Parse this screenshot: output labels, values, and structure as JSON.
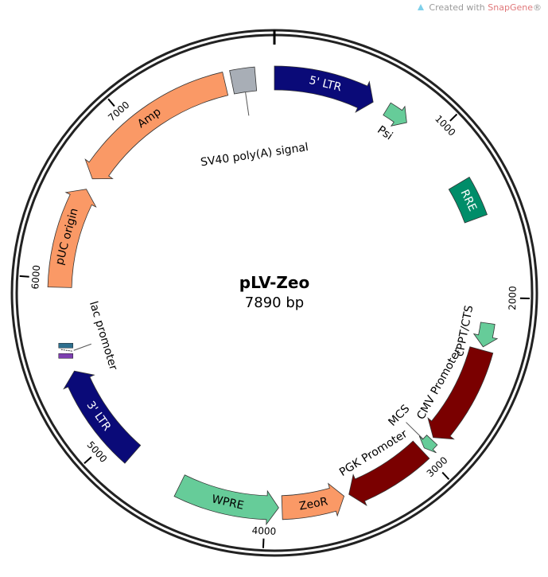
{
  "watermark": {
    "prefix": "Created with ",
    "brand": "SnapGene",
    "suffix": "®"
  },
  "plasmid": {
    "name": "pLV-Zeo",
    "size_text": "7890 bp",
    "length_bp": 7890
  },
  "ticks": [
    {
      "bp": 1000,
      "label": "1000"
    },
    {
      "bp": 2000,
      "label": "2000"
    },
    {
      "bp": 3000,
      "label": "3000"
    },
    {
      "bp": 4000,
      "label": "4000"
    },
    {
      "bp": 5000,
      "label": "5000"
    },
    {
      "bp": 6000,
      "label": "6000"
    },
    {
      "bp": 7000,
      "label": "7000"
    }
  ],
  "features": [
    {
      "id": "5-ltr",
      "name": "5' LTR",
      "start": 0,
      "end": 600,
      "type": "arrow",
      "dir": 1,
      "color": "#0a0a78",
      "track": 0,
      "labelPos": "inside",
      "labelColor": "#ffffff"
    },
    {
      "id": "psi",
      "name": "Psi",
      "start": 690,
      "end": 830,
      "type": "arrow",
      "dir": 1,
      "color": "#66cc99",
      "track": -1,
      "labelPos": "inner",
      "labelColor": "#000000"
    },
    {
      "id": "rre",
      "name": "RRE",
      "start": 1300,
      "end": 1530,
      "type": "box",
      "dir": 0,
      "color": "#008d69",
      "track": -1,
      "labelPos": "inside",
      "labelColor": "#ffffff"
    },
    {
      "id": "cppt-cts",
      "name": "cPPT/CTS",
      "start": 2150,
      "end": 2290,
      "type": "arrow",
      "dir": 1,
      "color": "#66cc99",
      "track": -1,
      "labelPos": "inner",
      "labelColor": "#000000"
    },
    {
      "id": "cmv-promoter",
      "name": "CMV Promoter",
      "start": 2310,
      "end": 2900,
      "type": "arrow",
      "dir": 1,
      "color": "#7a0000",
      "track": -1,
      "labelPos": "inner",
      "labelColor": "#000000"
    },
    {
      "id": "mcs",
      "name": "MCS",
      "start": 2915,
      "end": 2980,
      "type": "arrow",
      "dir": 1,
      "color": "#66cc99",
      "track": -1,
      "labelPos": "leader",
      "labelColor": "#000000"
    },
    {
      "id": "pgk-promoter",
      "name": "PGK Promoter",
      "start": 3000,
      "end": 3500,
      "type": "arrow",
      "dir": 1,
      "color": "#7a0000",
      "track": -1,
      "labelPos": "inner",
      "labelColor": "#000000"
    },
    {
      "id": "zeor",
      "name": "ZeoR",
      "start": 3530,
      "end": 3900,
      "type": "arrow",
      "dir": -1,
      "color": "#fa9966",
      "track": -1,
      "labelPos": "inside",
      "labelColor": "#000000"
    },
    {
      "id": "wpre",
      "name": "WPRE",
      "start": 3920,
      "end": 4520,
      "type": "arrow",
      "dir": -1,
      "color": "#66cc99",
      "track": -1,
      "labelPos": "inside",
      "labelColor": "#000000"
    },
    {
      "id": "3-ltr",
      "name": "3' LTR",
      "start": 4850,
      "end": 5450,
      "type": "arrow",
      "dir": 1,
      "color": "#0a0a78",
      "track": -1,
      "labelPos": "inside",
      "labelColor": "#ffffff"
    },
    {
      "id": "lac-promoter",
      "name": "lac promoter",
      "start": 5580,
      "end": 5660,
      "type": "small",
      "dir": 0,
      "color": "#2e6f8e",
      "track": 0,
      "labelPos": "leader",
      "labelColor": "#000000"
    },
    {
      "id": "puc-origin",
      "name": "pUC origin",
      "start": 5950,
      "end": 6550,
      "type": "arrow",
      "dir": 1,
      "color": "#fa9966",
      "track": -1,
      "labelPos": "inside",
      "labelColor": "#000000"
    },
    {
      "id": "amp",
      "name": "Amp",
      "start": 6620,
      "end": 7600,
      "type": "arrow",
      "dir": -1,
      "color": "#fa9966",
      "track": 0,
      "labelPos": "inside",
      "labelColor": "#000000"
    },
    {
      "id": "sv40-polya",
      "name": "SV40 poly(A) signal",
      "start": 7640,
      "end": 7780,
      "type": "box",
      "dir": 0,
      "color": "#a8aeb6",
      "track": 0,
      "labelPos": "leader",
      "labelColor": "#000000"
    }
  ]
}
